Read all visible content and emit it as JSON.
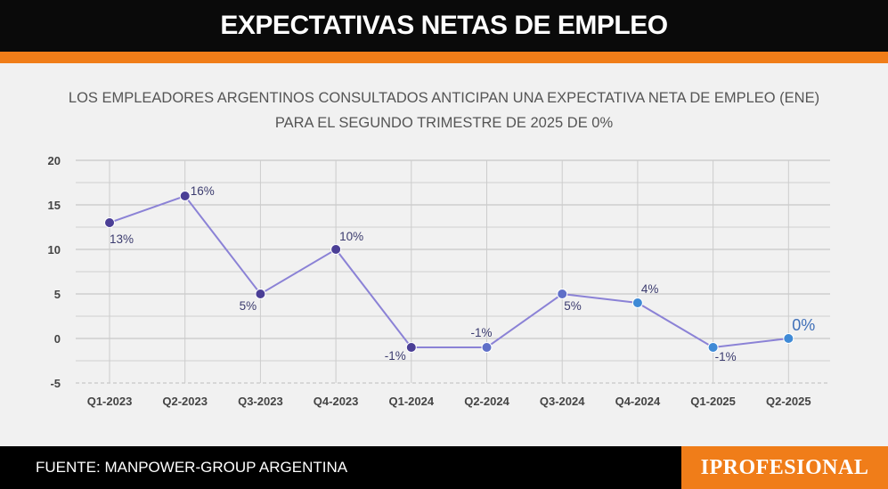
{
  "header": {
    "title": "EXPECTATIVAS NETAS DE EMPLEO"
  },
  "subtitle": {
    "line1": "LOS EMPLEADORES ARGENTINOS CONSULTADOS ANTICIPAN UNA EXPECTATIVA NETA DE EMPLEO (ENE)",
    "line2": "PARA EL SEGUNDO TRIMESTRE DE 2025 DE 0%"
  },
  "footer": {
    "source": "FUENTE: MANPOWER-GROUP ARGENTINA",
    "brand": "IPROFESIONAL"
  },
  "colors": {
    "line": "#8b82d6",
    "point_dark": "#4b3f96",
    "point_light": "#3f8ad6",
    "label": "#3b3b6e",
    "accent": "#f07d19"
  },
  "chart_data": {
    "type": "line",
    "categories": [
      "Q1-2023",
      "Q2-2023",
      "Q3-2023",
      "Q4-2023",
      "Q1-2024",
      "Q2-2024",
      "Q3-2024",
      "Q4-2024",
      "Q1-2025",
      "Q2-2025"
    ],
    "values": [
      13,
      16,
      5,
      10,
      -1,
      -1,
      5,
      4,
      -1,
      0
    ],
    "data_labels": [
      "13%",
      "16%",
      "5%",
      "10%",
      "-1%",
      "-1%",
      "5%",
      "4%",
      "-1%",
      "0%"
    ],
    "yticks": [
      "20",
      "15",
      "10",
      "5",
      "0",
      "-5"
    ],
    "ylim": [
      -5,
      20
    ],
    "grid": true,
    "title": "",
    "xlabel": "",
    "ylabel": ""
  }
}
